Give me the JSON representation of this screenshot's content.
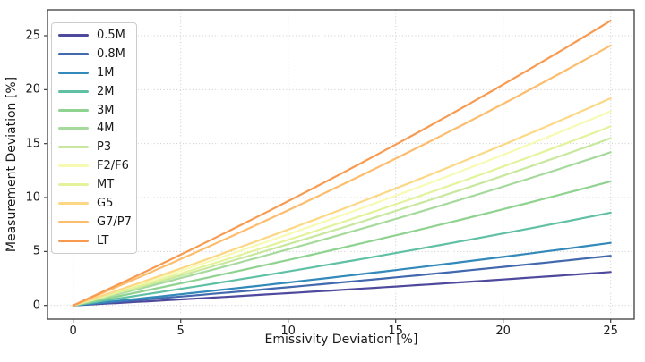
{
  "chart_data": {
    "type": "line",
    "title": "",
    "xlabel": "Emissivity Deviation [%]",
    "ylabel": "Measurement Deviation [%]",
    "x": [
      0,
      5,
      10,
      15,
      20,
      25
    ],
    "x_tick_labels": [
      "0",
      "5",
      "10",
      "15",
      "20",
      "25"
    ],
    "y_tick_labels": [
      "0",
      "5",
      "10",
      "15",
      "20",
      "25"
    ],
    "xlim": [
      -1.2,
      26.1
    ],
    "ylim": [
      -1.3,
      27.4
    ],
    "grid": "dotted",
    "legend_position": "upper-left",
    "series": [
      {
        "name": "0.5M",
        "color": "#4e499c",
        "values": [
          0,
          0.6,
          1.1,
          1.8,
          2.4,
          3.1
        ]
      },
      {
        "name": "0.8M",
        "color": "#4268ae",
        "values": [
          0,
          0.8,
          1.7,
          2.6,
          3.6,
          4.6
        ]
      },
      {
        "name": "1M",
        "color": "#3389b9",
        "values": [
          0,
          1.0,
          2.1,
          3.3,
          4.5,
          5.8
        ]
      },
      {
        "name": "2M",
        "color": "#5fc0a4",
        "values": [
          0,
          1.5,
          3.1,
          4.9,
          6.7,
          8.6
        ]
      },
      {
        "name": "3M",
        "color": "#90d391",
        "values": [
          0,
          2.1,
          4.2,
          6.5,
          8.9,
          11.5
        ]
      },
      {
        "name": "4M",
        "color": "#a6da9d",
        "values": [
          0,
          2.5,
          5.2,
          8.0,
          11.0,
          14.2
        ]
      },
      {
        "name": "P3",
        "color": "#c7e89e",
        "values": [
          0,
          2.8,
          5.7,
          8.8,
          12.0,
          15.5
        ]
      },
      {
        "name": "F2/F6",
        "color": "#f7fab3",
        "values": [
          0,
          3.2,
          6.6,
          10.2,
          14.0,
          18.0
        ]
      },
      {
        "name": "MT",
        "color": "#e3f39c",
        "values": [
          0,
          3.0,
          6.1,
          9.4,
          12.9,
          16.6
        ]
      },
      {
        "name": "G5",
        "color": "#fcd884",
        "values": [
          0,
          3.4,
          7.0,
          10.8,
          14.9,
          19.2
        ]
      },
      {
        "name": "G7/P7",
        "color": "#fdbd6e",
        "values": [
          0,
          4.3,
          8.8,
          13.6,
          18.7,
          24.1
        ]
      },
      {
        "name": "LT",
        "color": "#f89b51",
        "values": [
          0,
          4.7,
          9.7,
          14.9,
          20.5,
          26.4
        ]
      }
    ]
  },
  "colors": {
    "background": "#ffffff",
    "grid": "#c9c9c9",
    "spine": "#3d3d3d",
    "text": "#1a1a1a"
  }
}
